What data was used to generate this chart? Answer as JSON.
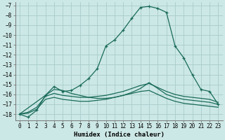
{
  "xlabel": "Humidex (Indice chaleur)",
  "bg_color": "#cce8e6",
  "grid_color": "#a8ccca",
  "line_color": "#1a6b5a",
  "xlim": [
    -0.5,
    23.5
  ],
  "ylim": [
    -18.6,
    -6.7
  ],
  "yticks": [
    -7,
    -8,
    -9,
    -10,
    -11,
    -12,
    -13,
    -14,
    -15,
    -16,
    -17,
    -18
  ],
  "xticks": [
    0,
    1,
    2,
    3,
    4,
    5,
    6,
    7,
    8,
    9,
    10,
    11,
    12,
    13,
    14,
    15,
    16,
    17,
    18,
    19,
    20,
    21,
    22,
    23
  ],
  "curve_main_x": [
    0,
    1,
    2,
    3,
    4,
    5,
    6,
    7,
    8,
    9,
    10,
    11,
    12,
    13,
    14,
    15,
    16,
    17,
    18,
    19,
    20,
    21,
    22,
    23
  ],
  "curve_main_y": [
    -18.0,
    -18.3,
    -17.6,
    -16.1,
    -15.2,
    -15.7,
    -15.6,
    -15.1,
    -14.4,
    -13.4,
    -11.1,
    -10.5,
    -9.5,
    -8.3,
    -7.2,
    -7.1,
    -7.3,
    -7.7,
    -11.1,
    -12.3,
    -14.0,
    -15.5,
    -15.7,
    -17.0
  ],
  "curve2_x": [
    0,
    1,
    2,
    3,
    4,
    5,
    6,
    7,
    8,
    9,
    10,
    11,
    12,
    13,
    14,
    15,
    16,
    17,
    18,
    19,
    20,
    21,
    22,
    23
  ],
  "curve2_y": [
    -18.0,
    -17.8,
    -17.3,
    -16.2,
    -15.9,
    -16.1,
    -16.2,
    -16.3,
    -16.3,
    -16.2,
    -16.1,
    -15.9,
    -15.7,
    -15.4,
    -15.1,
    -14.9,
    -15.3,
    -15.7,
    -16.0,
    -16.2,
    -16.3,
    -16.4,
    -16.5,
    -16.8
  ],
  "curve3_x": [
    0,
    1,
    2,
    3,
    4,
    5,
    6,
    7,
    8,
    9,
    10,
    11,
    12,
    13,
    14,
    15,
    16,
    17,
    18,
    19,
    20,
    21,
    22,
    23
  ],
  "curve3_y": [
    -18.0,
    -17.9,
    -17.5,
    -16.5,
    -16.3,
    -16.5,
    -16.6,
    -16.7,
    -16.7,
    -16.6,
    -16.5,
    -16.3,
    -16.1,
    -15.9,
    -15.7,
    -15.6,
    -16.0,
    -16.4,
    -16.7,
    -16.9,
    -17.0,
    -17.1,
    -17.2,
    -17.3
  ],
  "curve4_x": [
    0,
    3,
    4,
    5,
    6,
    7,
    8,
    9,
    10,
    11,
    12,
    13,
    14,
    15,
    16,
    17,
    18,
    19,
    20,
    21,
    22,
    23
  ],
  "curve4_y": [
    -18.0,
    -16.1,
    -15.5,
    -15.6,
    -15.9,
    -16.1,
    -16.3,
    -16.4,
    -16.4,
    -16.3,
    -16.1,
    -15.8,
    -15.4,
    -14.8,
    -15.4,
    -16.0,
    -16.3,
    -16.5,
    -16.6,
    -16.7,
    -16.8,
    -17.0
  ]
}
